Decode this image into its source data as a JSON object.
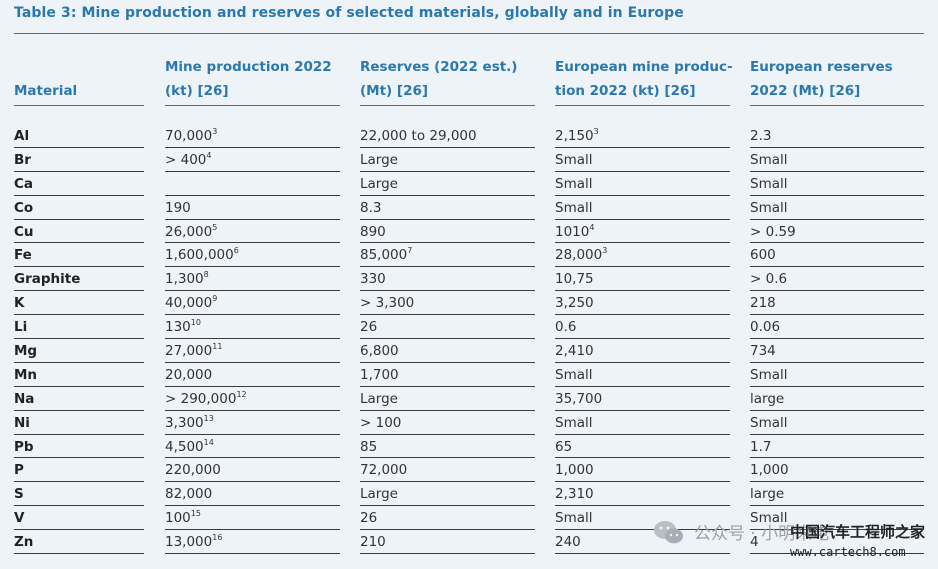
{
  "table": {
    "caption": "Table 3: Mine production and reserves of selected materials, globally and in Europe",
    "headers": [
      {
        "lines": [
          "Material"
        ]
      },
      {
        "lines": [
          "Mine production 2022",
          "(kt) [26]"
        ]
      },
      {
        "lines": [
          "Reserves (2022 est.)",
          "(Mt) [26]"
        ]
      },
      {
        "lines": [
          "European mine produc-",
          "tion 2022 (kt) [26]"
        ]
      },
      {
        "lines": [
          "European reserves",
          "2022 (Mt) [26]"
        ]
      }
    ],
    "rows": [
      {
        "material": "Al",
        "production": "70,000",
        "production_note": "3",
        "reserves": "22,000 to 29,000",
        "reserves_note": "",
        "eu_production": "2,150",
        "eu_production_note": "3",
        "eu_reserves": "2.3"
      },
      {
        "material": "Br",
        "production": "> 400",
        "production_note": "4",
        "reserves": "Large",
        "reserves_note": "",
        "eu_production": "Small",
        "eu_production_note": "",
        "eu_reserves": "Small"
      },
      {
        "material": "Ca",
        "production": "",
        "production_note": "",
        "reserves": "Large",
        "reserves_note": "",
        "eu_production": "Small",
        "eu_production_note": "",
        "eu_reserves": "Small"
      },
      {
        "material": "Co",
        "production": "190",
        "production_note": "",
        "reserves": "8.3",
        "reserves_note": "",
        "eu_production": "Small",
        "eu_production_note": "",
        "eu_reserves": "Small"
      },
      {
        "material": "Cu",
        "production": "26,000",
        "production_note": "5",
        "reserves": "890",
        "reserves_note": "",
        "eu_production": "1010",
        "eu_production_note": "4",
        "eu_reserves": "> 0.59"
      },
      {
        "material": "Fe",
        "production": "1,600,000",
        "production_note": "6",
        "reserves": "85,000",
        "reserves_note": "7",
        "eu_production": "28,000",
        "eu_production_note": "3",
        "eu_reserves": "600"
      },
      {
        "material": "Graphite",
        "production": "1,300",
        "production_note": "8",
        "reserves": "330",
        "reserves_note": "",
        "eu_production": "10,75",
        "eu_production_note": "",
        "eu_reserves": "> 0.6"
      },
      {
        "material": "K",
        "production": "40,000",
        "production_note": "9",
        "reserves": "> 3,300",
        "reserves_note": "",
        "eu_production": "3,250",
        "eu_production_note": "",
        "eu_reserves": "218"
      },
      {
        "material": "Li",
        "production": "130",
        "production_note": "10",
        "reserves": "26",
        "reserves_note": "",
        "eu_production": "0.6",
        "eu_production_note": "",
        "eu_reserves": "0.06"
      },
      {
        "material": "Mg",
        "production": "27,000",
        "production_note": "11",
        "reserves": "6,800",
        "reserves_note": "",
        "eu_production": "2,410",
        "eu_production_note": "",
        "eu_reserves": "734"
      },
      {
        "material": "Mn",
        "production": "20,000",
        "production_note": "",
        "reserves": "1,700",
        "reserves_note": "",
        "eu_production": "Small",
        "eu_production_note": "",
        "eu_reserves": "Small"
      },
      {
        "material": "Na",
        "production": "> 290,000",
        "production_note": "12",
        "reserves": "Large",
        "reserves_note": "",
        "eu_production": "35,700",
        "eu_production_note": "",
        "eu_reserves": "large"
      },
      {
        "material": "Ni",
        "production": "3,300",
        "production_note": "13",
        "reserves": "> 100",
        "reserves_note": "",
        "eu_production": "Small",
        "eu_production_note": "",
        "eu_reserves": "Small"
      },
      {
        "material": "Pb",
        "production": "4,500",
        "production_note": "14",
        "reserves": "85",
        "reserves_note": "",
        "eu_production": "65",
        "eu_production_note": "",
        "eu_reserves": "1.7"
      },
      {
        "material": "P",
        "production": "220,000",
        "production_note": "",
        "reserves": "72,000",
        "reserves_note": "",
        "eu_production": "1,000",
        "eu_production_note": "",
        "eu_reserves": "1,000"
      },
      {
        "material": "S",
        "production": "82,000",
        "production_note": "",
        "reserves": "Large",
        "reserves_note": "",
        "eu_production": "2,310",
        "eu_production_note": "",
        "eu_reserves": "large"
      },
      {
        "material": "V",
        "production": "100",
        "production_note": "15",
        "reserves": "26",
        "reserves_note": "",
        "eu_production": "Small",
        "eu_production_note": "",
        "eu_reserves": "Small"
      },
      {
        "material": "Zn",
        "production": "13,000",
        "production_note": "16",
        "reserves": "210",
        "reserves_note": "",
        "eu_production": "240",
        "eu_production_note": "",
        "eu_reserves": "4"
      }
    ]
  },
  "watermark": {
    "icon": "wechat-icon",
    "text": "公众号 · 小明来电",
    "brand": "中国汽车工程师之家",
    "url": "www.cartech8.com"
  },
  "colors": {
    "accent": "#2a78ad",
    "background": "#eef3f8"
  }
}
